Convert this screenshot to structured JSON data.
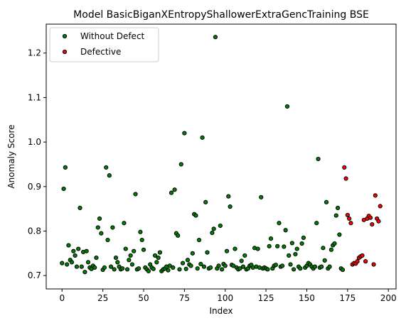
{
  "chart_data": {
    "type": "scatter",
    "title": "Model BasicBiganXEntropyShallowerExtraGencTraining BSE",
    "xlabel": "Index",
    "ylabel": "Anomaly Score",
    "xlim": [
      -9.7,
      204.7
    ],
    "ylim": [
      0.67,
      1.265
    ],
    "xticks": [
      0,
      25,
      50,
      75,
      100,
      125,
      150,
      175,
      200
    ],
    "yticks": [
      0.7,
      0.8,
      0.9,
      1.0,
      1.1,
      1.2
    ],
    "ytick_labels": [
      "0.7",
      "0.8",
      "0.9",
      "1.0",
      "1.1",
      "1.2"
    ],
    "legend_position": "top-left",
    "grid": false,
    "series": [
      {
        "name": "Without Defect",
        "color": "#008000",
        "points": [
          [
            0,
            0.728
          ],
          [
            1,
            0.895
          ],
          [
            2,
            0.943
          ],
          [
            3,
            0.725
          ],
          [
            4,
            0.768
          ],
          [
            5,
            0.735
          ],
          [
            6,
            0.73
          ],
          [
            7,
            0.755
          ],
          [
            8,
            0.745
          ],
          [
            9,
            0.72
          ],
          [
            10,
            0.76
          ],
          [
            11,
            0.852
          ],
          [
            12,
            0.72
          ],
          [
            13,
            0.753
          ],
          [
            14,
            0.708
          ],
          [
            15,
            0.755
          ],
          [
            16,
            0.73
          ],
          [
            17,
            0.718
          ],
          [
            18,
            0.715
          ],
          [
            19,
            0.722
          ],
          [
            20,
            0.718
          ],
          [
            21,
            0.74
          ],
          [
            22,
            0.808
          ],
          [
            23,
            0.828
          ],
          [
            24,
            0.795
          ],
          [
            25,
            0.713
          ],
          [
            26,
            0.718
          ],
          [
            27,
            0.943
          ],
          [
            28,
            0.78
          ],
          [
            29,
            0.925
          ],
          [
            30,
            0.72
          ],
          [
            31,
            0.808
          ],
          [
            32,
            0.714
          ],
          [
            33,
            0.74
          ],
          [
            34,
            0.73
          ],
          [
            35,
            0.72
          ],
          [
            36,
            0.714
          ],
          [
            37,
            0.716
          ],
          [
            38,
            0.818
          ],
          [
            39,
            0.76
          ],
          [
            40,
            0.714
          ],
          [
            41,
            0.735
          ],
          [
            42,
            0.745
          ],
          [
            43,
            0.725
          ],
          [
            44,
            0.755
          ],
          [
            45,
            0.883
          ],
          [
            46,
            0.714
          ],
          [
            47,
            0.716
          ],
          [
            48,
            0.798
          ],
          [
            49,
            0.78
          ],
          [
            50,
            0.758
          ],
          [
            51,
            0.718
          ],
          [
            52,
            0.714
          ],
          [
            53,
            0.71
          ],
          [
            54,
            0.725
          ],
          [
            55,
            0.718
          ],
          [
            56,
            0.715
          ],
          [
            57,
            0.745
          ],
          [
            58,
            0.73
          ],
          [
            59,
            0.74
          ],
          [
            60,
            0.752
          ],
          [
            61,
            0.71
          ],
          [
            62,
            0.714
          ],
          [
            63,
            0.716
          ],
          [
            64,
            0.72
          ],
          [
            65,
            0.712
          ],
          [
            66,
            0.722
          ],
          [
            67,
            0.886
          ],
          [
            68,
            0.718
          ],
          [
            69,
            0.893
          ],
          [
            70,
            0.795
          ],
          [
            71,
            0.79
          ],
          [
            72,
            0.714
          ],
          [
            73,
            0.95
          ],
          [
            74,
            0.728
          ],
          [
            75,
            1.02
          ],
          [
            76,
            0.715
          ],
          [
            77,
            0.735
          ],
          [
            78,
            0.725
          ],
          [
            79,
            0.722
          ],
          [
            80,
            0.75
          ],
          [
            81,
            0.838
          ],
          [
            82,
            0.835
          ],
          [
            83,
            0.716
          ],
          [
            84,
            0.78
          ],
          [
            85,
            0.726
          ],
          [
            86,
            1.01
          ],
          [
            87,
            0.72
          ],
          [
            88,
            0.865
          ],
          [
            89,
            0.752
          ],
          [
            90,
            0.716
          ],
          [
            91,
            0.718
          ],
          [
            92,
            0.796
          ],
          [
            93,
            0.805
          ],
          [
            94,
            1.236
          ],
          [
            95,
            0.716
          ],
          [
            96,
            0.722
          ],
          [
            97,
            0.812
          ],
          [
            98,
            0.714
          ],
          [
            99,
            0.726
          ],
          [
            100,
            0.722
          ],
          [
            101,
            0.755
          ],
          [
            102,
            0.878
          ],
          [
            103,
            0.855
          ],
          [
            104,
            0.724
          ],
          [
            105,
            0.722
          ],
          [
            106,
            0.76
          ],
          [
            107,
            0.718
          ],
          [
            108,
            0.714
          ],
          [
            109,
            0.716
          ],
          [
            110,
            0.733
          ],
          [
            111,
            0.72
          ],
          [
            112,
            0.745
          ],
          [
            113,
            0.714
          ],
          [
            114,
            0.716
          ],
          [
            115,
            0.722
          ],
          [
            116,
            0.724
          ],
          [
            117,
            0.718
          ],
          [
            118,
            0.762
          ],
          [
            119,
            0.72
          ],
          [
            120,
            0.76
          ],
          [
            121,
            0.718
          ],
          [
            122,
            0.876
          ],
          [
            123,
            0.716
          ],
          [
            124,
            0.718
          ],
          [
            125,
            0.716
          ],
          [
            126,
            0.714
          ],
          [
            127,
            0.766
          ],
          [
            128,
            0.783
          ],
          [
            129,
            0.716
          ],
          [
            130,
            0.722
          ],
          [
            131,
            0.724
          ],
          [
            132,
            0.766
          ],
          [
            133,
            0.818
          ],
          [
            134,
            0.72
          ],
          [
            135,
            0.722
          ],
          [
            136,
            0.765
          ],
          [
            137,
            0.802
          ],
          [
            138,
            1.08
          ],
          [
            139,
            0.745
          ],
          [
            140,
            0.725
          ],
          [
            141,
            0.773
          ],
          [
            142,
            0.714
          ],
          [
            143,
            0.748
          ],
          [
            144,
            0.76
          ],
          [
            145,
            0.72
          ],
          [
            146,
            0.716
          ],
          [
            147,
            0.772
          ],
          [
            148,
            0.785
          ],
          [
            149,
            0.718
          ],
          [
            150,
            0.722
          ],
          [
            151,
            0.728
          ],
          [
            152,
            0.725
          ],
          [
            153,
            0.72
          ],
          [
            154,
            0.716
          ],
          [
            155,
            0.72
          ],
          [
            156,
            0.818
          ],
          [
            157,
            0.962
          ],
          [
            158,
            0.718
          ],
          [
            159,
            0.72
          ],
          [
            160,
            0.762
          ],
          [
            161,
            0.734
          ],
          [
            162,
            0.865
          ],
          [
            163,
            0.716
          ],
          [
            164,
            0.72
          ],
          [
            165,
            0.758
          ],
          [
            166,
            0.768
          ],
          [
            167,
            0.772
          ],
          [
            168,
            0.835
          ],
          [
            169,
            0.852
          ],
          [
            170,
            0.792
          ],
          [
            171,
            0.716
          ],
          [
            172,
            0.713
          ]
        ]
      },
      {
        "name": "Defective",
        "color": "#ff0000",
        "points": [
          [
            173,
            0.943
          ],
          [
            174,
            0.918
          ],
          [
            175,
            0.836
          ],
          [
            176,
            0.828
          ],
          [
            177,
            0.818
          ],
          [
            178,
            0.725
          ],
          [
            179,
            0.728
          ],
          [
            180,
            0.727
          ],
          [
            181,
            0.732
          ],
          [
            182,
            0.74
          ],
          [
            183,
            0.743
          ],
          [
            184,
            0.745
          ],
          [
            185,
            0.825
          ],
          [
            186,
            0.732
          ],
          [
            187,
            0.828
          ],
          [
            188,
            0.834
          ],
          [
            189,
            0.83
          ],
          [
            190,
            0.815
          ],
          [
            191,
            0.725
          ],
          [
            192,
            0.88
          ],
          [
            193,
            0.828
          ],
          [
            194,
            0.822
          ],
          [
            195,
            0.856
          ]
        ]
      }
    ]
  }
}
